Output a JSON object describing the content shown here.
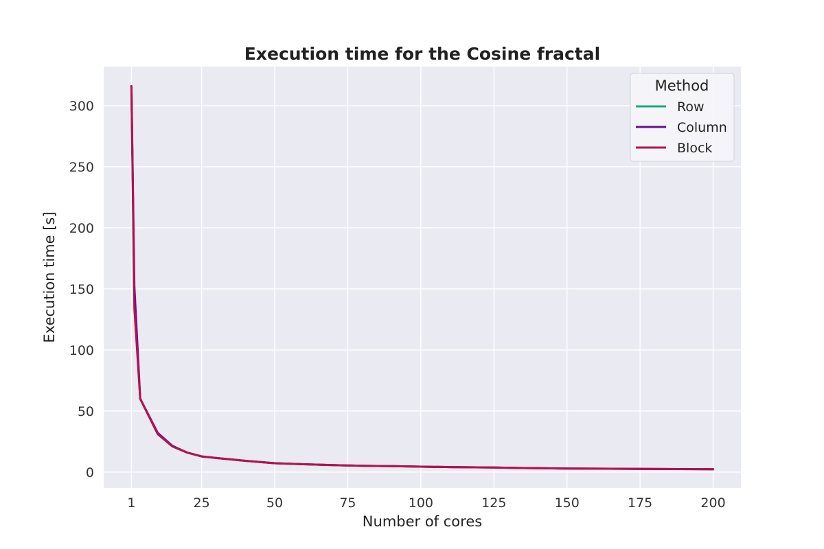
{
  "chart_data": {
    "type": "line",
    "title": "Execution time for the Cosine fractal",
    "xlabel": "Number of cores",
    "ylabel": "Execution time [s]",
    "xlim": [
      -8.5,
      209.5
    ],
    "ylim": [
      -13,
      332
    ],
    "xticks": [
      1,
      25,
      50,
      75,
      100,
      125,
      150,
      175,
      200
    ],
    "yticks": [
      0,
      50,
      100,
      150,
      200,
      250,
      300
    ],
    "grid": true,
    "legend": {
      "title": "Method",
      "placement": "top-right"
    },
    "x": [
      1,
      2,
      4,
      10,
      15,
      20,
      25,
      30,
      40,
      50,
      60,
      70,
      80,
      90,
      100,
      110,
      125,
      135,
      150,
      175,
      200
    ],
    "series": [
      {
        "name": "Row",
        "color": "#1aa97b",
        "values": [
          316,
          140,
          60,
          31,
          21,
          16,
          12.8,
          11.5,
          9.2,
          7.2,
          6.4,
          5.7,
          5.1,
          4.8,
          4.4,
          4.1,
          3.7,
          3.3,
          2.9,
          2.6,
          2.3
        ]
      },
      {
        "name": "Column",
        "color": "#6a0f8a",
        "values": [
          316,
          152,
          60,
          32,
          21.5,
          16,
          12.8,
          11.5,
          9.2,
          7.2,
          6.4,
          5.7,
          5.1,
          4.8,
          4.4,
          4.1,
          3.7,
          3.3,
          2.9,
          2.6,
          2.3
        ]
      },
      {
        "name": "Block",
        "color": "#b5124f",
        "values": [
          316,
          134,
          60,
          31,
          21,
          16,
          12.8,
          11.5,
          9.2,
          7.2,
          6.4,
          5.7,
          5.1,
          4.8,
          4.4,
          4.1,
          3.7,
          3.3,
          2.9,
          2.6,
          2.3
        ]
      }
    ]
  }
}
